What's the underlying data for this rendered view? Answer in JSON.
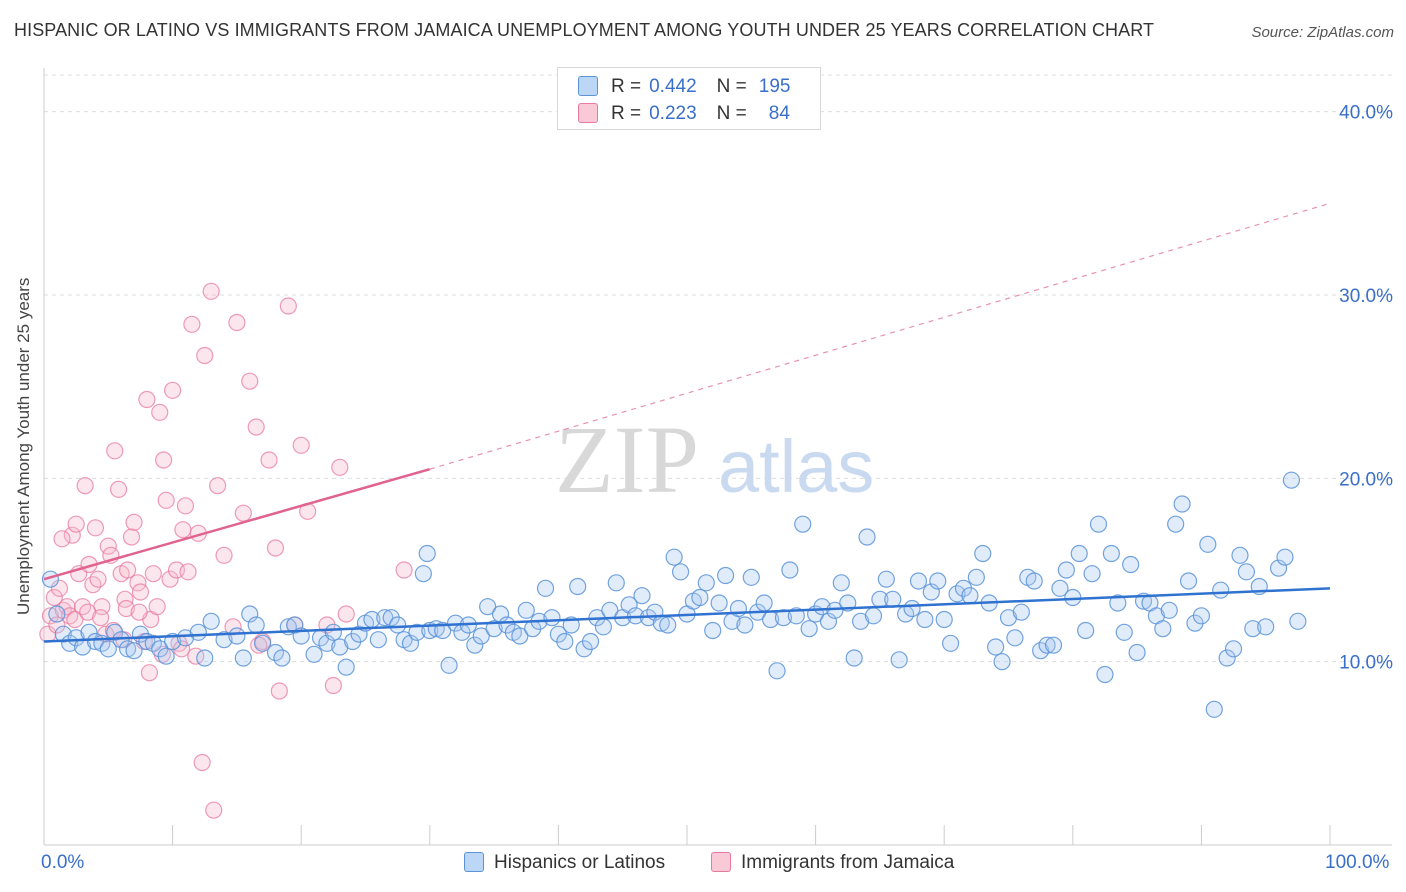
{
  "title": "HISPANIC OR LATINO VS IMMIGRANTS FROM JAMAICA UNEMPLOYMENT AMONG YOUTH UNDER 25 YEARS CORRELATION CHART",
  "source": "Source: ZipAtlas.com",
  "watermark": {
    "zip": "ZIP",
    "atlas": "atlas"
  },
  "legend": {
    "rows": [
      {
        "r_label": "R =",
        "r_value": "0.442",
        "n_label": "N =",
        "n_value": "195"
      },
      {
        "r_label": "R =",
        "r_value": "0.223",
        "n_label": "N =",
        "n_value": "84"
      }
    ]
  },
  "bottom_legend": [
    "Hispanics or Latinos",
    "Immigrants from Jamaica"
  ],
  "x_tick_labels": [
    "0.0%",
    "100.0%"
  ],
  "colors": {
    "blue_fill": "#a8c8f0",
    "blue_stroke": "#5b93d8",
    "blue_line": "#2f72d0",
    "pink_fill": "#f6b8cc",
    "pink_stroke": "#e8799f",
    "pink_line": "#e0628e",
    "grid": "#dddddd",
    "tick_text": "#3a6fc9"
  },
  "chart_data": {
    "type": "scatter",
    "title": "HISPANIC OR LATINO VS IMMIGRANTS FROM JAMAICA UNEMPLOYMENT AMONG YOUTH UNDER 25 YEARS CORRELATION CHART",
    "xlabel": "",
    "ylabel": "Unemployment Among Youth under 25 years",
    "xlim": [
      0,
      100
    ],
    "ylim": [
      0,
      42
    ],
    "y_ticks": [
      10,
      20,
      30,
      40
    ],
    "y_tick_labels": [
      "10.0%",
      "20.0%",
      "30.0%",
      "40.0%"
    ],
    "grid": true,
    "series": [
      {
        "name": "Hispanics or Latinos",
        "r": 0.442,
        "n": 195,
        "trend": {
          "x": [
            0,
            100
          ],
          "y": [
            11.1,
            14.0
          ],
          "dashed_from": null
        },
        "points": [
          [
            0.5,
            14.5
          ],
          [
            1,
            12.6
          ],
          [
            1.5,
            11.5
          ],
          [
            2,
            11
          ],
          [
            2.5,
            11.3
          ],
          [
            3,
            10.8
          ],
          [
            3.5,
            11.6
          ],
          [
            4,
            11.1
          ],
          [
            4.5,
            11
          ],
          [
            5,
            10.7
          ],
          [
            5.5,
            11.6
          ],
          [
            6,
            11.2
          ],
          [
            6.5,
            10.7
          ],
          [
            7,
            10.6
          ],
          [
            7.5,
            11.5
          ],
          [
            8,
            11.1
          ],
          [
            8.5,
            11
          ],
          [
            9,
            10.7
          ],
          [
            9.5,
            10.3
          ],
          [
            10,
            11.1
          ],
          [
            11,
            11.3
          ],
          [
            12,
            11.6
          ],
          [
            12.5,
            10.2
          ],
          [
            13,
            12.2
          ],
          [
            14,
            11.2
          ],
          [
            15,
            11.4
          ],
          [
            15.5,
            10.2
          ],
          [
            16,
            12.6
          ],
          [
            16.5,
            12
          ],
          [
            17,
            11
          ],
          [
            18,
            10.5
          ],
          [
            18.5,
            10.2
          ],
          [
            19,
            11.9
          ],
          [
            19.5,
            12
          ],
          [
            20,
            11.4
          ],
          [
            21,
            10.4
          ],
          [
            21.5,
            11.3
          ],
          [
            22,
            11
          ],
          [
            22.5,
            11.6
          ],
          [
            23,
            10.8
          ],
          [
            23.5,
            9.7
          ],
          [
            24,
            11.1
          ],
          [
            24.5,
            11.5
          ],
          [
            25,
            12.1
          ],
          [
            25.5,
            12.3
          ],
          [
            26,
            11.2
          ],
          [
            26.5,
            12.4
          ],
          [
            27,
            12.4
          ],
          [
            27.5,
            12
          ],
          [
            28,
            11.2
          ],
          [
            28.5,
            11
          ],
          [
            29,
            11.6
          ],
          [
            29.5,
            14.8
          ],
          [
            29.8,
            15.9
          ],
          [
            30,
            11.7
          ],
          [
            30.5,
            11.8
          ],
          [
            31,
            11.7
          ],
          [
            31.5,
            9.8
          ],
          [
            32,
            12.1
          ],
          [
            32.5,
            11.6
          ],
          [
            33,
            12
          ],
          [
            33.5,
            10.9
          ],
          [
            34,
            11.4
          ],
          [
            34.5,
            13
          ],
          [
            35,
            11.8
          ],
          [
            35.5,
            12.6
          ],
          [
            36,
            12
          ],
          [
            36.5,
            11.6
          ],
          [
            37,
            11.4
          ],
          [
            37.5,
            12.8
          ],
          [
            38,
            11.8
          ],
          [
            38.5,
            12.2
          ],
          [
            39,
            14
          ],
          [
            39.5,
            12.4
          ],
          [
            40,
            11.5
          ],
          [
            40.5,
            11.1
          ],
          [
            41,
            12
          ],
          [
            41.5,
            14.1
          ],
          [
            42,
            10.7
          ],
          [
            42.5,
            11.1
          ],
          [
            43,
            12.4
          ],
          [
            43.5,
            11.9
          ],
          [
            44,
            12.8
          ],
          [
            44.5,
            14.3
          ],
          [
            45,
            12.4
          ],
          [
            45.5,
            13.1
          ],
          [
            46,
            12.5
          ],
          [
            46.5,
            13.6
          ],
          [
            47,
            12.4
          ],
          [
            47.5,
            12.7
          ],
          [
            48,
            12.1
          ],
          [
            48.5,
            12
          ],
          [
            49,
            15.7
          ],
          [
            49.5,
            14.9
          ],
          [
            50,
            12.6
          ],
          [
            50.5,
            13.3
          ],
          [
            51,
            13.5
          ],
          [
            51.5,
            14.3
          ],
          [
            52,
            11.7
          ],
          [
            52.5,
            13.2
          ],
          [
            53,
            14.7
          ],
          [
            53.5,
            12.2
          ],
          [
            54,
            12.9
          ],
          [
            54.5,
            12
          ],
          [
            55,
            14.6
          ],
          [
            55.5,
            12.7
          ],
          [
            56,
            13.2
          ],
          [
            56.5,
            12.3
          ],
          [
            57,
            9.5
          ],
          [
            57.5,
            12.4
          ],
          [
            58,
            15
          ],
          [
            58.5,
            12.5
          ],
          [
            59,
            17.5
          ],
          [
            59.5,
            11.8
          ],
          [
            60,
            12.6
          ],
          [
            60.5,
            13
          ],
          [
            61,
            12.2
          ],
          [
            61.5,
            12.8
          ],
          [
            62,
            14.3
          ],
          [
            62.5,
            13.2
          ],
          [
            63,
            10.2
          ],
          [
            63.5,
            12.2
          ],
          [
            64,
            16.8
          ],
          [
            64.5,
            12.5
          ],
          [
            65,
            13.4
          ],
          [
            65.5,
            14.5
          ],
          [
            66,
            13.4
          ],
          [
            66.5,
            10.1
          ],
          [
            67,
            12.6
          ],
          [
            67.5,
            12.9
          ],
          [
            68,
            14.4
          ],
          [
            68.5,
            12.3
          ],
          [
            69,
            13.8
          ],
          [
            69.5,
            14.4
          ],
          [
            70,
            12.3
          ],
          [
            70.5,
            11
          ],
          [
            71,
            13.7
          ],
          [
            71.5,
            14
          ],
          [
            72,
            13.6
          ],
          [
            72.5,
            14.6
          ],
          [
            73,
            15.9
          ],
          [
            73.5,
            13.2
          ],
          [
            74,
            10.8
          ],
          [
            74.5,
            10
          ],
          [
            75,
            12.4
          ],
          [
            75.5,
            11.3
          ],
          [
            76,
            12.7
          ],
          [
            76.5,
            14.6
          ],
          [
            77,
            14.4
          ],
          [
            77.5,
            10.6
          ],
          [
            78,
            10.9
          ],
          [
            78.5,
            10.9
          ],
          [
            79,
            14
          ],
          [
            79.5,
            15
          ],
          [
            80,
            13.5
          ],
          [
            80.5,
            15.9
          ],
          [
            81,
            11.7
          ],
          [
            81.5,
            14.8
          ],
          [
            82,
            17.5
          ],
          [
            82.5,
            9.3
          ],
          [
            83,
            15.9
          ],
          [
            83.5,
            13.2
          ],
          [
            84,
            11.6
          ],
          [
            84.5,
            15.3
          ],
          [
            85,
            10.5
          ],
          [
            85.5,
            13.3
          ],
          [
            86,
            13.2
          ],
          [
            86.5,
            12.5
          ],
          [
            87,
            11.8
          ],
          [
            87.5,
            12.8
          ],
          [
            88,
            17.5
          ],
          [
            88.5,
            18.6
          ],
          [
            89,
            14.4
          ],
          [
            89.5,
            12.1
          ],
          [
            90,
            12.5
          ],
          [
            90.5,
            16.4
          ],
          [
            91,
            7.4
          ],
          [
            91.5,
            13.9
          ],
          [
            92,
            10.2
          ],
          [
            92.5,
            10.7
          ],
          [
            93,
            15.8
          ],
          [
            93.5,
            14.9
          ],
          [
            94,
            11.8
          ],
          [
            94.5,
            14.1
          ],
          [
            95,
            11.9
          ],
          [
            96,
            15.1
          ],
          [
            96.5,
            15.7
          ],
          [
            97,
            19.9
          ],
          [
            97.5,
            12.2
          ]
        ]
      },
      {
        "name": "Immigrants from Jamaica",
        "r": 0.223,
        "n": 84,
        "trend": {
          "x": [
            0,
            30
          ],
          "y": [
            14.5,
            20.5
          ],
          "dashed_to": [
            100,
            35.0
          ]
        },
        "points": [
          [
            0.3,
            11.5
          ],
          [
            0.5,
            12.5
          ],
          [
            0.8,
            13.5
          ],
          [
            1,
            12
          ],
          [
            1.2,
            14
          ],
          [
            1.5,
            12.8
          ],
          [
            1.8,
            13
          ],
          [
            2,
            12.5
          ],
          [
            2.2,
            16.9
          ],
          [
            2.5,
            17.5
          ],
          [
            2.7,
            14.8
          ],
          [
            3,
            13
          ],
          [
            3.2,
            19.6
          ],
          [
            3.5,
            15.3
          ],
          [
            3.8,
            14.2
          ],
          [
            4,
            17.3
          ],
          [
            4.2,
            14.5
          ],
          [
            4.5,
            13
          ],
          [
            4.8,
            11.5
          ],
          [
            5,
            16.3
          ],
          [
            5.2,
            15.8
          ],
          [
            5.5,
            21.5
          ],
          [
            5.8,
            19.4
          ],
          [
            6,
            14.8
          ],
          [
            6.3,
            13.4
          ],
          [
            6.5,
            15
          ],
          [
            6.8,
            16.8
          ],
          [
            7,
            17.6
          ],
          [
            7.3,
            14.3
          ],
          [
            7.5,
            13.8
          ],
          [
            7.8,
            11.1
          ],
          [
            8,
            24.3
          ],
          [
            8.3,
            12.3
          ],
          [
            8.5,
            14.8
          ],
          [
            8.8,
            13
          ],
          [
            9,
            23.6
          ],
          [
            9.3,
            21
          ],
          [
            9.5,
            18.8
          ],
          [
            9.8,
            14.5
          ],
          [
            10,
            24.8
          ],
          [
            10.3,
            15
          ],
          [
            10.5,
            11
          ],
          [
            10.8,
            17.2
          ],
          [
            11,
            18.5
          ],
          [
            11.5,
            28.4
          ],
          [
            12,
            17
          ],
          [
            12.5,
            26.7
          ],
          [
            13,
            30.2
          ],
          [
            13.5,
            19.6
          ],
          [
            14,
            15.8
          ],
          [
            15,
            28.5
          ],
          [
            15.5,
            18.1
          ],
          [
            16,
            25.3
          ],
          [
            16.5,
            22.8
          ],
          [
            17,
            11.1
          ],
          [
            17.5,
            21
          ],
          [
            18,
            16.2
          ],
          [
            19,
            29.4
          ],
          [
            19.5,
            12
          ],
          [
            20,
            21.8
          ],
          [
            20.5,
            18.2
          ],
          [
            22,
            12
          ],
          [
            22.5,
            8.7
          ],
          [
            23,
            20.6
          ],
          [
            23.5,
            12.6
          ],
          [
            28,
            15
          ],
          [
            12.3,
            4.5
          ],
          [
            13.2,
            1.9
          ],
          [
            8.2,
            9.4
          ],
          [
            18.3,
            8.4
          ],
          [
            6.2,
            11.2
          ],
          [
            9.2,
            10.4
          ],
          [
            10.7,
            10.7
          ],
          [
            1.4,
            16.7
          ],
          [
            2.4,
            12.3
          ],
          [
            3.4,
            12.7
          ],
          [
            4.4,
            12.4
          ],
          [
            5.4,
            11.7
          ],
          [
            6.4,
            12.9
          ],
          [
            7.4,
            12.7
          ],
          [
            11.2,
            14.9
          ],
          [
            11.8,
            10.3
          ],
          [
            14.7,
            11.9
          ],
          [
            16.7,
            10.9
          ]
        ]
      }
    ]
  }
}
